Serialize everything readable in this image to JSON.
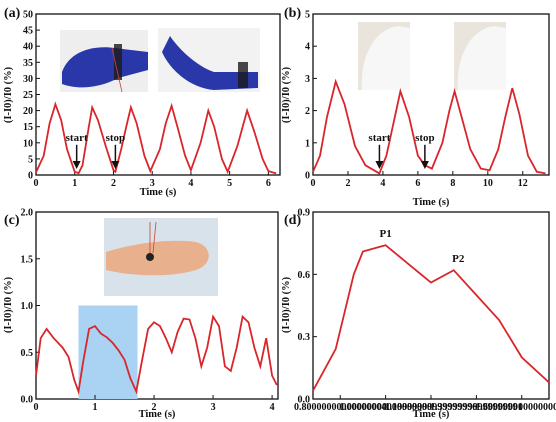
{
  "panels": [
    {
      "label": "(a)"
    },
    {
      "label": "(b)"
    },
    {
      "label": "(c)"
    },
    {
      "label": "(d)"
    }
  ],
  "colors": {
    "line": "#d9262b",
    "highlight": "#a9d2f3",
    "axis": "#111111"
  },
  "chart_data": [
    {
      "type": "line",
      "panel": "(a)",
      "xlabel": "Time (s)",
      "ylabel": "(I-I0)/I0 (%)",
      "xlim": [
        0,
        6.3
      ],
      "ylim": [
        0,
        50
      ],
      "xticks": [
        0,
        1,
        2,
        3,
        4,
        5,
        6
      ],
      "yticks": [
        0,
        5,
        10,
        15,
        20,
        25,
        30,
        35,
        40,
        45,
        50
      ],
      "series": [
        {
          "values": [
            [
              0,
              0.8
            ],
            [
              0.2,
              6
            ],
            [
              0.35,
              16
            ],
            [
              0.5,
              22
            ],
            [
              0.65,
              17
            ],
            [
              0.8,
              8
            ],
            [
              1.0,
              1
            ],
            [
              1.1,
              0.6
            ],
            [
              1.2,
              3
            ],
            [
              1.35,
              14
            ],
            [
              1.45,
              21
            ],
            [
              1.6,
              17
            ],
            [
              1.8,
              9
            ],
            [
              2.0,
              1.5
            ],
            [
              2.05,
              1
            ],
            [
              2.2,
              8
            ],
            [
              2.35,
              16
            ],
            [
              2.45,
              21
            ],
            [
              2.6,
              16
            ],
            [
              2.8,
              6
            ],
            [
              2.95,
              1.2
            ],
            [
              3.2,
              8
            ],
            [
              3.35,
              16
            ],
            [
              3.5,
              21.5
            ],
            [
              3.65,
              15
            ],
            [
              3.85,
              6
            ],
            [
              4.0,
              1.5
            ],
            [
              4.25,
              10
            ],
            [
              4.45,
              20
            ],
            [
              4.6,
              15
            ],
            [
              4.8,
              5
            ],
            [
              4.95,
              1
            ],
            [
              5.2,
              9
            ],
            [
              5.45,
              20
            ],
            [
              5.65,
              13
            ],
            [
              5.85,
              5
            ],
            [
              6.0,
              1.2
            ],
            [
              6.2,
              0.5
            ]
          ]
        }
      ],
      "annotations": [
        {
          "text": "start",
          "x": 1.05,
          "y": 10
        },
        {
          "text": "stop",
          "x": 2.05,
          "y": 10
        }
      ]
    },
    {
      "type": "line",
      "panel": "(b)",
      "xlabel": "Time (s)",
      "ylabel": "(I-I0)/I0 (%)",
      "xlim": [
        0,
        13.5
      ],
      "ylim": [
        0,
        5
      ],
      "xticks": [
        0,
        2,
        4,
        6,
        8,
        10,
        12
      ],
      "yticks": [
        0,
        1,
        2,
        3,
        4,
        5
      ],
      "series": [
        {
          "values": [
            [
              0,
              0.1
            ],
            [
              0.4,
              0.6
            ],
            [
              0.8,
              1.8
            ],
            [
              1.3,
              2.9
            ],
            [
              1.8,
              2.2
            ],
            [
              2.4,
              0.9
            ],
            [
              3.0,
              0.3
            ],
            [
              3.8,
              0.05
            ],
            [
              4.2,
              0.6
            ],
            [
              4.6,
              1.6
            ],
            [
              5.0,
              2.6
            ],
            [
              5.5,
              1.8
            ],
            [
              6.0,
              0.6
            ],
            [
              6.4,
              0.3
            ],
            [
              6.8,
              0.2
            ],
            [
              7.4,
              1.0
            ],
            [
              7.8,
              2.0
            ],
            [
              8.1,
              2.6
            ],
            [
              8.5,
              1.8
            ],
            [
              9.0,
              0.8
            ],
            [
              9.6,
              0.2
            ],
            [
              10.1,
              0.15
            ],
            [
              10.6,
              0.8
            ],
            [
              11.0,
              1.8
            ],
            [
              11.4,
              2.7
            ],
            [
              11.8,
              1.9
            ],
            [
              12.3,
              0.6
            ],
            [
              12.8,
              0.1
            ],
            [
              13.3,
              0.05
            ]
          ]
        }
      ],
      "annotations": [
        {
          "text": "start",
          "x": 3.8,
          "y": 1.0
        },
        {
          "text": "stop",
          "x": 6.4,
          "y": 1.0
        }
      ]
    },
    {
      "type": "line",
      "panel": "(c)",
      "xlabel": "Time (s)",
      "ylabel": "(I-I0)/I0 (%)",
      "xlim": [
        0,
        4.1
      ],
      "ylim": [
        0,
        2.0
      ],
      "xticks": [
        0,
        1,
        2,
        3,
        4
      ],
      "yticks": [
        0.0,
        0.5,
        1.0,
        1.5,
        2.0
      ],
      "highlight": [
        0.72,
        1.72
      ],
      "series": [
        {
          "values": [
            [
              0,
              0.25
            ],
            [
              0.08,
              0.65
            ],
            [
              0.18,
              0.75
            ],
            [
              0.3,
              0.65
            ],
            [
              0.45,
              0.55
            ],
            [
              0.55,
              0.45
            ],
            [
              0.65,
              0.2
            ],
            [
              0.72,
              0.08
            ],
            [
              0.8,
              0.4
            ],
            [
              0.9,
              0.75
            ],
            [
              1.0,
              0.78
            ],
            [
              1.1,
              0.7
            ],
            [
              1.2,
              0.66
            ],
            [
              1.3,
              0.6
            ],
            [
              1.4,
              0.52
            ],
            [
              1.5,
              0.42
            ],
            [
              1.6,
              0.22
            ],
            [
              1.7,
              0.08
            ],
            [
              1.8,
              0.42
            ],
            [
              1.9,
              0.75
            ],
            [
              2.0,
              0.82
            ],
            [
              2.1,
              0.78
            ],
            [
              2.2,
              0.65
            ],
            [
              2.3,
              0.5
            ],
            [
              2.4,
              0.72
            ],
            [
              2.5,
              0.86
            ],
            [
              2.6,
              0.85
            ],
            [
              2.7,
              0.65
            ],
            [
              2.8,
              0.35
            ],
            [
              2.9,
              0.55
            ],
            [
              3.0,
              0.88
            ],
            [
              3.1,
              0.78
            ],
            [
              3.2,
              0.35
            ],
            [
              3.3,
              0.3
            ],
            [
              3.4,
              0.55
            ],
            [
              3.5,
              0.88
            ],
            [
              3.6,
              0.82
            ],
            [
              3.7,
              0.55
            ],
            [
              3.8,
              0.35
            ],
            [
              3.9,
              0.65
            ],
            [
              4.0,
              0.25
            ],
            [
              4.08,
              0.15
            ]
          ]
        }
      ]
    },
    {
      "type": "line",
      "panel": "(d)",
      "xlabel": "Time (s)",
      "ylabel": "(I-I0)/I0 (%)",
      "xlim": [
        0.68,
        1.72
      ],
      "ylim": [
        0,
        0.9
      ],
      "xticks": [
        0.8,
        1.0,
        1.2,
        1.4,
        1.6
      ],
      "yticks": [
        0.0,
        0.3,
        0.6,
        0.9
      ],
      "series": [
        {
          "values": [
            [
              0.68,
              0.04
            ],
            [
              0.78,
              0.24
            ],
            [
              0.86,
              0.6
            ],
            [
              0.9,
              0.71
            ],
            [
              1.0,
              0.74
            ],
            [
              1.1,
              0.65
            ],
            [
              1.2,
              0.56
            ],
            [
              1.3,
              0.62
            ],
            [
              1.4,
              0.5
            ],
            [
              1.5,
              0.38
            ],
            [
              1.6,
              0.2
            ],
            [
              1.72,
              0.08
            ]
          ]
        }
      ],
      "annotations": [
        {
          "text": "P1",
          "x": 1.0,
          "y": 0.76
        },
        {
          "text": "P2",
          "x": 1.32,
          "y": 0.64
        }
      ]
    }
  ]
}
